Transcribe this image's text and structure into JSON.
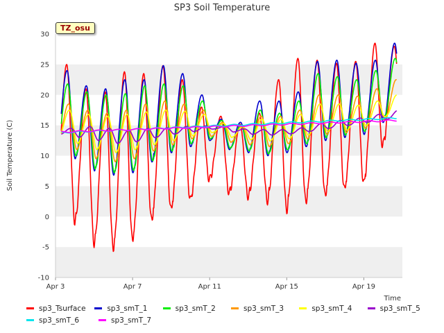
{
  "chart_data": {
    "type": "line",
    "title": "SP3 Soil Temperature",
    "xlabel": "Time",
    "ylabel": "Soil Temperature (C)",
    "ylim": [
      -10,
      30
    ],
    "xlim": [
      0,
      18
    ],
    "yticks": [
      -10,
      -5,
      0,
      5,
      10,
      15,
      20,
      25,
      30
    ],
    "xticks": [
      {
        "value": 0,
        "label": "Apr 3"
      },
      {
        "value": 4,
        "label": "Apr 7"
      },
      {
        "value": 8,
        "label": "Apr 11"
      },
      {
        "value": 12,
        "label": "Apr 15"
      },
      {
        "value": 16,
        "label": "Apr 19"
      }
    ],
    "grid": "horizontal bands",
    "legend_position": "bottom",
    "site_label": "TZ_osu",
    "series": [
      {
        "name": "sp3_Tsurface",
        "color": "#ff0000",
        "daily_min": [
          2.5,
          -1,
          -4.5,
          -5.2,
          -3.7,
          -0.5,
          1.2,
          2.8,
          6.2,
          3.8,
          3.2,
          2.5,
          1.0,
          2.5,
          3.5,
          4.5,
          5.5,
          12
        ],
        "daily_max": [
          25.0,
          21,
          20.5,
          23.8,
          23.5,
          24.8,
          22.5,
          18.0,
          16.5,
          15.2,
          17.0,
          22.5,
          26.0,
          25.7,
          25.2,
          25.5,
          28.5,
          28
        ]
      },
      {
        "name": "sp3_smT_1",
        "color": "#0000cc",
        "daily_min": [
          10.5,
          9.5,
          7.5,
          6.8,
          7.2,
          9.0,
          10.5,
          11.5,
          12.5,
          11.0,
          10.5,
          10.0,
          10.5,
          11.5,
          12.5,
          13.0,
          13.5,
          15.5
        ],
        "daily_max": [
          24.0,
          21.5,
          21.0,
          22.5,
          22.5,
          24.8,
          23.5,
          20.0,
          16.0,
          15.5,
          19.0,
          19.0,
          20.5,
          25.5,
          25.7,
          25.2,
          25.7,
          28.5
        ]
      },
      {
        "name": "sp3_smT_2",
        "color": "#00ee00",
        "daily_min": [
          11.0,
          10.0,
          7.8,
          7.2,
          7.6,
          9.2,
          10.8,
          12.0,
          12.8,
          11.2,
          10.8,
          10.3,
          11.0,
          12.0,
          13.0,
          13.4,
          14.0,
          16.0
        ],
        "daily_max": [
          21.8,
          20.5,
          20.0,
          20.2,
          21.5,
          21.8,
          21.5,
          19.0,
          15.8,
          15.0,
          17.5,
          17.0,
          19.0,
          23.5,
          23.0,
          22.5,
          24.0,
          26.0
        ]
      },
      {
        "name": "sp3_smT_3",
        "color": "#ff9900",
        "daily_min": [
          12.0,
          11.0,
          9.5,
          9.0,
          9.5,
          10.8,
          11.8,
          12.8,
          13.2,
          12.2,
          11.8,
          11.5,
          12.0,
          12.8,
          13.5,
          13.8,
          14.5,
          16.0
        ],
        "daily_max": [
          18.5,
          17.5,
          17.0,
          17.5,
          18.5,
          19.0,
          18.5,
          17.5,
          15.5,
          14.8,
          16.5,
          16.5,
          17.5,
          20.0,
          20.0,
          19.8,
          21.0,
          22.5
        ]
      },
      {
        "name": "sp3_smT_4",
        "color": "#ffff00",
        "daily_min": [
          12.8,
          12.0,
          11.0,
          10.5,
          11.0,
          11.8,
          12.5,
          13.3,
          13.8,
          13.0,
          12.6,
          12.4,
          12.8,
          13.4,
          14.0,
          14.2,
          15.0,
          16.5
        ],
        "daily_max": [
          17.5,
          16.8,
          16.5,
          16.8,
          17.2,
          17.5,
          17.3,
          16.8,
          15.3,
          14.8,
          16.0,
          16.0,
          16.8,
          18.5,
          18.5,
          18.3,
          19.0,
          20.0
        ]
      },
      {
        "name": "sp3_smT_5",
        "color": "#9900cc",
        "daily_min": [
          13.5,
          13.0,
          12.5,
          12.0,
          12.3,
          13.0,
          13.6,
          14.0,
          14.4,
          13.9,
          13.5,
          13.4,
          13.6,
          14.0,
          14.5,
          15.0,
          15.5,
          16.0
        ],
        "daily_max": [
          14.5,
          14.8,
          14.5,
          14.2,
          14.5,
          14.6,
          14.8,
          14.9,
          14.8,
          14.4,
          14.3,
          14.3,
          14.6,
          15.3,
          15.8,
          16.2,
          16.8,
          17.5
        ]
      },
      {
        "name": "sp3_smT_6",
        "color": "#00e5ee",
        "start": 13.8,
        "end": 16.2
      },
      {
        "name": "sp3_smT_7",
        "color": "#ff00ff",
        "start": 13.9,
        "end": 15.8
      }
    ]
  }
}
